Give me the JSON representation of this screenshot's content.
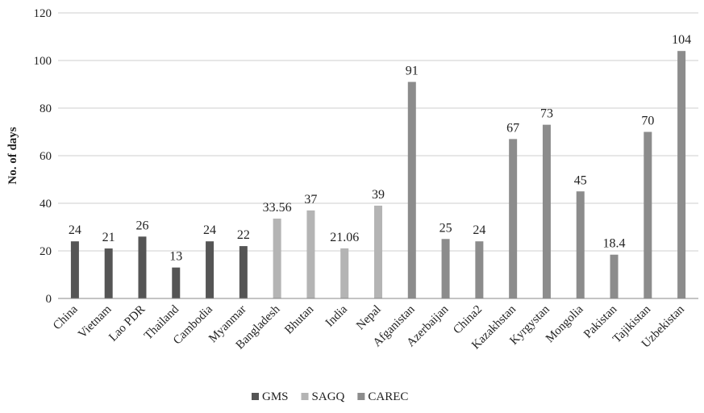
{
  "chart_data": {
    "type": "bar",
    "title": "",
    "xlabel": "",
    "ylabel": "No. of days",
    "ylim": [
      0,
      120
    ],
    "yticks": [
      0,
      20,
      40,
      60,
      80,
      100,
      120
    ],
    "grid": "horizontal",
    "legend_position": "bottom",
    "categories": [
      "China",
      "Vietnam",
      "Lao PDR",
      "Thailand",
      "Cambodia",
      "Myanmar",
      "Bangladesh",
      "Bhutan",
      "India",
      "Nepal",
      "Afganistan",
      "Azerbaijan",
      "China2",
      "Kazakhstan",
      "Kyrgystan",
      "Mongolia",
      "Pakistan",
      "Tajikistan",
      "Uzbekistan"
    ],
    "values": [
      24,
      21,
      26,
      13,
      24,
      22,
      33.56,
      37,
      21.06,
      39,
      91,
      25,
      24,
      67,
      73,
      45,
      18.4,
      70,
      104
    ],
    "value_labels": [
      "24",
      "21",
      "26",
      "13",
      "24",
      "22",
      "33.56",
      "37",
      "21.06",
      "39",
      "91",
      "25",
      "24",
      "67",
      "73",
      "45",
      "18.4",
      "70",
      "104"
    ],
    "group_of_category": [
      "GMS",
      "GMS",
      "GMS",
      "GMS",
      "GMS",
      "GMS",
      "SAGQ",
      "SAGQ",
      "SAGQ",
      "SAGQ",
      "CAREC",
      "CAREC",
      "CAREC",
      "CAREC",
      "CAREC",
      "CAREC",
      "CAREC",
      "CAREC",
      "CAREC"
    ],
    "series": [
      {
        "name": "GMS",
        "color": "#555555"
      },
      {
        "name": "SAGQ",
        "color": "#b4b4b4"
      },
      {
        "name": "CAREC",
        "color": "#8c8c8c"
      }
    ]
  }
}
